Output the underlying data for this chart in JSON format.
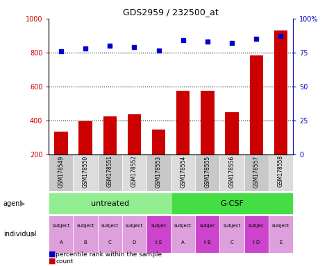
{
  "title": "GDS2959 / 232500_at",
  "samples": [
    "GSM178549",
    "GSM178550",
    "GSM178551",
    "GSM178552",
    "GSM178553",
    "GSM178554",
    "GSM178555",
    "GSM178556",
    "GSM178557",
    "GSM178558"
  ],
  "counts": [
    335,
    395,
    425,
    435,
    345,
    575,
    575,
    450,
    785,
    930
  ],
  "percentiles": [
    76,
    78,
    80,
    79,
    76.5,
    84,
    83,
    82,
    85,
    87
  ],
  "individual_labels_line1": [
    "subject",
    "subject",
    "subject",
    "subject",
    "subjec",
    "subject",
    "subjec",
    "subject",
    "subjec",
    "subject"
  ],
  "individual_labels_line2": [
    "A",
    "B",
    "C",
    "D",
    "t E",
    "A",
    "t B",
    "C",
    "t D",
    "E"
  ],
  "individual_colors": [
    "#DDA0DD",
    "#DDA0DD",
    "#DDA0DD",
    "#DDA0DD",
    "#CC44CC",
    "#DDA0DD",
    "#CC44CC",
    "#DDA0DD",
    "#CC44CC",
    "#DDA0DD"
  ],
  "agent_untreated_color": "#90EE90",
  "agent_gcsf_color": "#44DD44",
  "bar_color": "#CC0000",
  "dot_color": "#0000CC",
  "ylim_left": [
    200,
    1000
  ],
  "ylim_right": [
    0,
    100
  ],
  "yticks_left": [
    200,
    400,
    600,
    800,
    1000
  ],
  "yticks_right": [
    0,
    25,
    50,
    75,
    100
  ],
  "grid_values": [
    400,
    600,
    800
  ],
  "bar_width": 0.55,
  "bar_bottom": 200,
  "label_bg_even": "#C8C8C8",
  "label_bg_odd": "#DCDCDC"
}
